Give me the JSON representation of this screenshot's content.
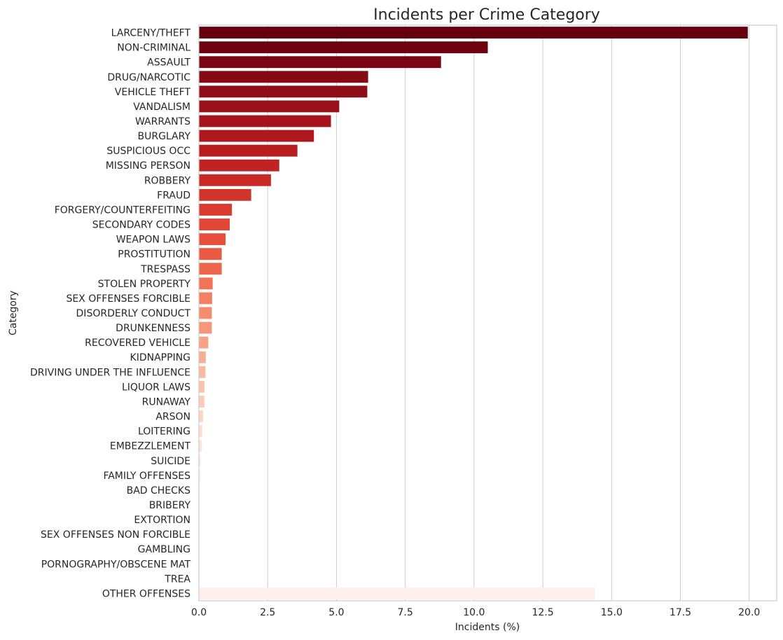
{
  "chart_data": {
    "type": "bar",
    "orientation": "horizontal",
    "title": "Incidents per Crime Category",
    "xlabel": "Incidents (%)",
    "ylabel": "Category",
    "xlim": [
      0,
      21
    ],
    "xticks": [
      "0.0",
      "2.5",
      "5.0",
      "7.5",
      "10.0",
      "12.5",
      "15.0",
      "17.5",
      "20.0"
    ],
    "grid": "vertical",
    "palette": "Reds (dark to light)",
    "categories": [
      "LARCENY/THEFT",
      "NON-CRIMINAL",
      "ASSAULT",
      "DRUG/NARCOTIC",
      "VEHICLE THEFT",
      "VANDALISM",
      "WARRANTS",
      "BURGLARY",
      "SUSPICIOUS OCC",
      "MISSING PERSON",
      "ROBBERY",
      "FRAUD",
      "FORGERY/COUNTERFEITING",
      "SECONDARY CODES",
      "WEAPON LAWS",
      "PROSTITUTION",
      "TRESPASS",
      "STOLEN PROPERTY",
      "SEX OFFENSES FORCIBLE",
      "DISORDERLY CONDUCT",
      "DRUNKENNESS",
      "RECOVERED VEHICLE",
      "KIDNAPPING",
      "DRIVING UNDER THE INFLUENCE",
      "LIQUOR LAWS",
      "RUNAWAY",
      "ARSON",
      "LOITERING",
      "EMBEZZLEMENT",
      "SUICIDE",
      "FAMILY OFFENSES",
      "BAD CHECKS",
      "BRIBERY",
      "EXTORTION",
      "SEX OFFENSES NON FORCIBLE",
      "GAMBLING",
      "PORNOGRAPHY/OBSCENE MAT",
      "TREA",
      "OTHER OFFENSES"
    ],
    "values": [
      19.95,
      10.5,
      8.8,
      6.15,
      6.12,
      5.1,
      4.8,
      4.18,
      3.58,
      2.92,
      2.62,
      1.9,
      1.2,
      1.12,
      0.97,
      0.83,
      0.83,
      0.5,
      0.48,
      0.47,
      0.47,
      0.34,
      0.25,
      0.24,
      0.2,
      0.2,
      0.15,
      0.12,
      0.11,
      0.06,
      0.05,
      0.04,
      0.03,
      0.03,
      0.02,
      0.02,
      0.01,
      0.005,
      14.4
    ],
    "colors": [
      "#67000d",
      "#6f020f",
      "#790612",
      "#840a14",
      "#8f0d16",
      "#9a1018",
      "#a5131b",
      "#ae171d",
      "#b71c1f",
      "#c12223",
      "#c92a26",
      "#d2342b",
      "#d93b30",
      "#e04536",
      "#e54f3c",
      "#ea5a43",
      "#ee664d",
      "#f27358",
      "#f47f63",
      "#f58b6f",
      "#f6977b",
      "#f8a387",
      "#f9ae93",
      "#fab9a0",
      "#fbc3ad",
      "#fbcdb9",
      "#fcd5c4",
      "#fcddce",
      "#fde4d7",
      "#fdeae1",
      "#fef0ea",
      "#fef3ee",
      "#fef5f1",
      "#fef6f3",
      "#fff7f4",
      "#fff8f5",
      "#fff9f6",
      "#fff9f7",
      "#fff0eb"
    ]
  }
}
